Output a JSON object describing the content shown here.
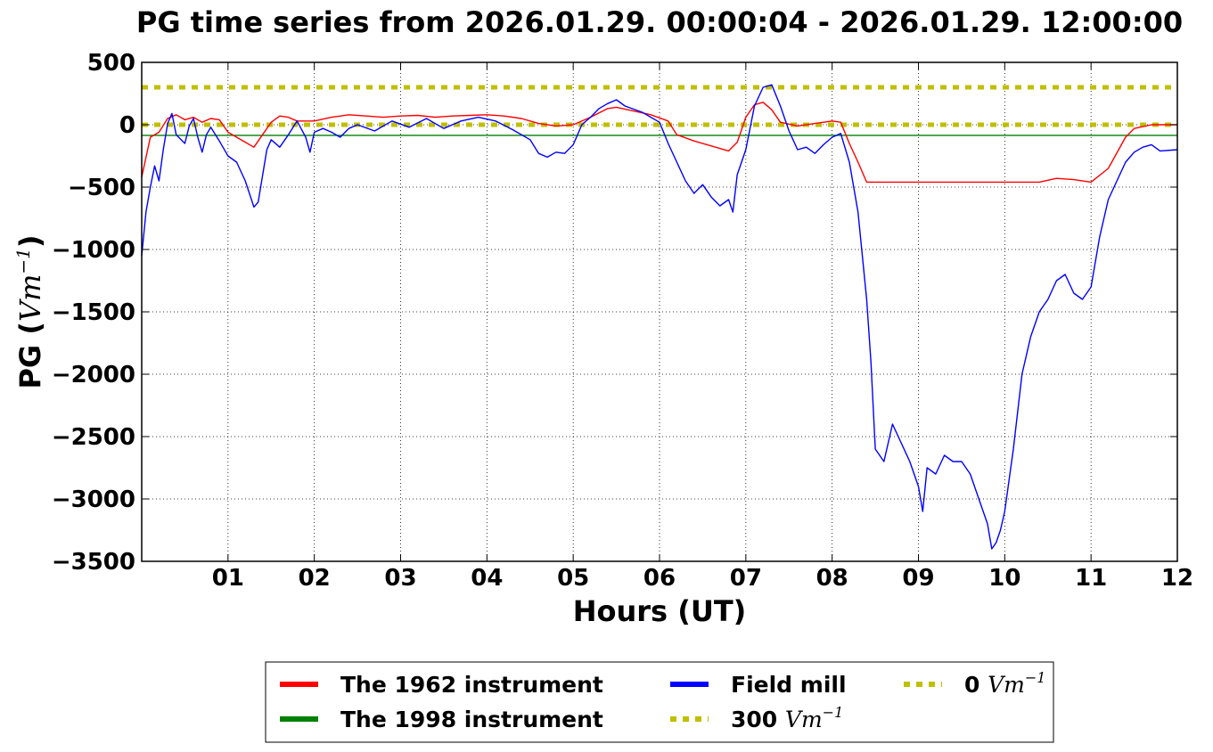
{
  "chart_data": {
    "type": "line",
    "title": "PG time series from 2026.01.29. 00:00:04 - 2026.01.29. 12:00:00",
    "xlabel": "Hours (UT)",
    "ylabel_text": "PG (",
    "ylabel_unit": "Vm",
    "ylabel_exp": "−1",
    "ylabel_close": ")",
    "xlim": [
      0,
      12
    ],
    "ylim": [
      -3500,
      500
    ],
    "grid": true,
    "legend_placement": "below",
    "x_ticks": [
      1,
      2,
      3,
      4,
      5,
      6,
      7,
      8,
      9,
      10,
      11,
      12
    ],
    "x_tick_labels": [
      "01",
      "02",
      "03",
      "04",
      "05",
      "06",
      "07",
      "08",
      "09",
      "10",
      "11",
      "12"
    ],
    "y_ticks": [
      500,
      0,
      -500,
      -1000,
      -1500,
      -2000,
      -2500,
      -3000,
      -3500
    ],
    "y_tick_labels": [
      "500",
      "0",
      "−500",
      "−1000",
      "−1500",
      "−2000",
      "−2500",
      "−3000",
      "−3500"
    ],
    "series": [
      {
        "name": "The 1962 instrument",
        "color": "#ff0000",
        "style": "solid",
        "x": [
          0,
          0.1,
          0.2,
          0.3,
          0.4,
          0.5,
          0.6,
          0.7,
          0.8,
          0.9,
          1.0,
          1.1,
          1.2,
          1.3,
          1.4,
          1.5,
          1.6,
          1.7,
          1.8,
          2.0,
          2.2,
          2.4,
          2.6,
          2.8,
          3.0,
          3.2,
          3.4,
          3.6,
          3.8,
          4.0,
          4.2,
          4.4,
          4.6,
          4.8,
          5.0,
          5.2,
          5.4,
          5.5,
          5.7,
          5.9,
          6.1,
          6.2,
          6.4,
          6.6,
          6.8,
          6.9,
          7.0,
          7.1,
          7.2,
          7.3,
          7.4,
          7.6,
          7.8,
          8.0,
          8.1,
          8.2,
          8.3,
          8.4,
          9.0,
          9.5,
          10.0,
          10.4,
          10.6,
          10.8,
          11.0,
          11.2,
          11.4,
          11.5,
          11.7,
          12.0
        ],
        "values": [
          -420,
          -100,
          -60,
          50,
          80,
          40,
          60,
          20,
          50,
          40,
          -60,
          -100,
          -140,
          -180,
          -80,
          20,
          70,
          60,
          30,
          30,
          60,
          80,
          70,
          60,
          70,
          75,
          60,
          70,
          75,
          80,
          70,
          50,
          10,
          -10,
          0,
          60,
          130,
          140,
          110,
          80,
          30,
          -80,
          -130,
          -170,
          -210,
          -140,
          60,
          160,
          180,
          120,
          20,
          -10,
          10,
          30,
          20,
          -150,
          -300,
          -460,
          -460,
          -460,
          -460,
          -460,
          -430,
          -440,
          -460,
          -350,
          -100,
          -30,
          0,
          0
        ]
      },
      {
        "name": "The 1998 instrument",
        "color": "#008000",
        "style": "solid",
        "x": [
          0,
          12
        ],
        "values": [
          -85,
          -85
        ]
      },
      {
        "name": "Field mill",
        "color": "#0000ff",
        "style": "solid",
        "x": [
          0,
          0.05,
          0.1,
          0.15,
          0.2,
          0.25,
          0.3,
          0.35,
          0.4,
          0.5,
          0.55,
          0.6,
          0.65,
          0.7,
          0.75,
          0.8,
          0.9,
          1.0,
          1.1,
          1.2,
          1.3,
          1.35,
          1.45,
          1.5,
          1.6,
          1.7,
          1.8,
          1.9,
          1.95,
          2.0,
          2.1,
          2.2,
          2.3,
          2.4,
          2.5,
          2.7,
          2.9,
          3.1,
          3.3,
          3.5,
          3.7,
          3.9,
          4.1,
          4.3,
          4.5,
          4.6,
          4.7,
          4.8,
          4.9,
          5.0,
          5.1,
          5.2,
          5.3,
          5.4,
          5.5,
          5.6,
          5.8,
          6.0,
          6.1,
          6.2,
          6.3,
          6.4,
          6.5,
          6.6,
          6.7,
          6.8,
          6.85,
          6.9,
          7.0,
          7.1,
          7.2,
          7.3,
          7.4,
          7.5,
          7.6,
          7.7,
          7.8,
          7.9,
          8.0,
          8.1,
          8.2,
          8.3,
          8.4,
          8.45,
          8.5,
          8.6,
          8.7,
          8.8,
          8.9,
          9.0,
          9.05,
          9.1,
          9.2,
          9.3,
          9.4,
          9.5,
          9.6,
          9.7,
          9.8,
          9.85,
          9.9,
          9.95,
          10.0,
          10.1,
          10.2,
          10.3,
          10.4,
          10.5,
          10.6,
          10.7,
          10.8,
          10.9,
          11.0,
          11.1,
          11.2,
          11.3,
          11.4,
          11.5,
          11.6,
          11.7,
          11.8,
          12.0
        ],
        "values": [
          -1050,
          -700,
          -500,
          -330,
          -450,
          -200,
          10,
          90,
          -80,
          -150,
          -10,
          50,
          -100,
          -220,
          -80,
          -20,
          -130,
          -250,
          -300,
          -450,
          -660,
          -620,
          -200,
          -120,
          -180,
          -80,
          30,
          -100,
          -220,
          -60,
          -30,
          -60,
          -100,
          -30,
          0,
          -50,
          30,
          -20,
          50,
          -30,
          30,
          60,
          30,
          -40,
          -120,
          -230,
          -260,
          -220,
          -230,
          -160,
          0,
          60,
          130,
          170,
          200,
          150,
          100,
          20,
          -150,
          -300,
          -450,
          -550,
          -480,
          -580,
          -650,
          -600,
          -700,
          -400,
          -200,
          150,
          300,
          320,
          150,
          -50,
          -200,
          -180,
          -230,
          -160,
          -100,
          -70,
          -300,
          -700,
          -1400,
          -1900,
          -2600,
          -2700,
          -2400,
          -2550,
          -2700,
          -2900,
          -3100,
          -2750,
          -2800,
          -2650,
          -2700,
          -2700,
          -2800,
          -3000,
          -3200,
          -3400,
          -3350,
          -3250,
          -3100,
          -2600,
          -2000,
          -1700,
          -1500,
          -1400,
          -1250,
          -1200,
          -1350,
          -1400,
          -1300,
          -900,
          -600,
          -450,
          -300,
          -220,
          -180,
          -160,
          -210,
          -200
        ]
      },
      {
        "name": "300",
        "unit": "Vm",
        "unit_exp": "−1",
        "color": "#bfbf00",
        "style": "dotted",
        "x": [
          0,
          12
        ],
        "values": [
          300,
          300
        ]
      },
      {
        "name": "0",
        "unit": "Vm",
        "unit_exp": "−1",
        "color": "#bfbf00",
        "style": "dotted",
        "x": [
          0,
          12
        ],
        "values": [
          0,
          0
        ]
      }
    ]
  }
}
